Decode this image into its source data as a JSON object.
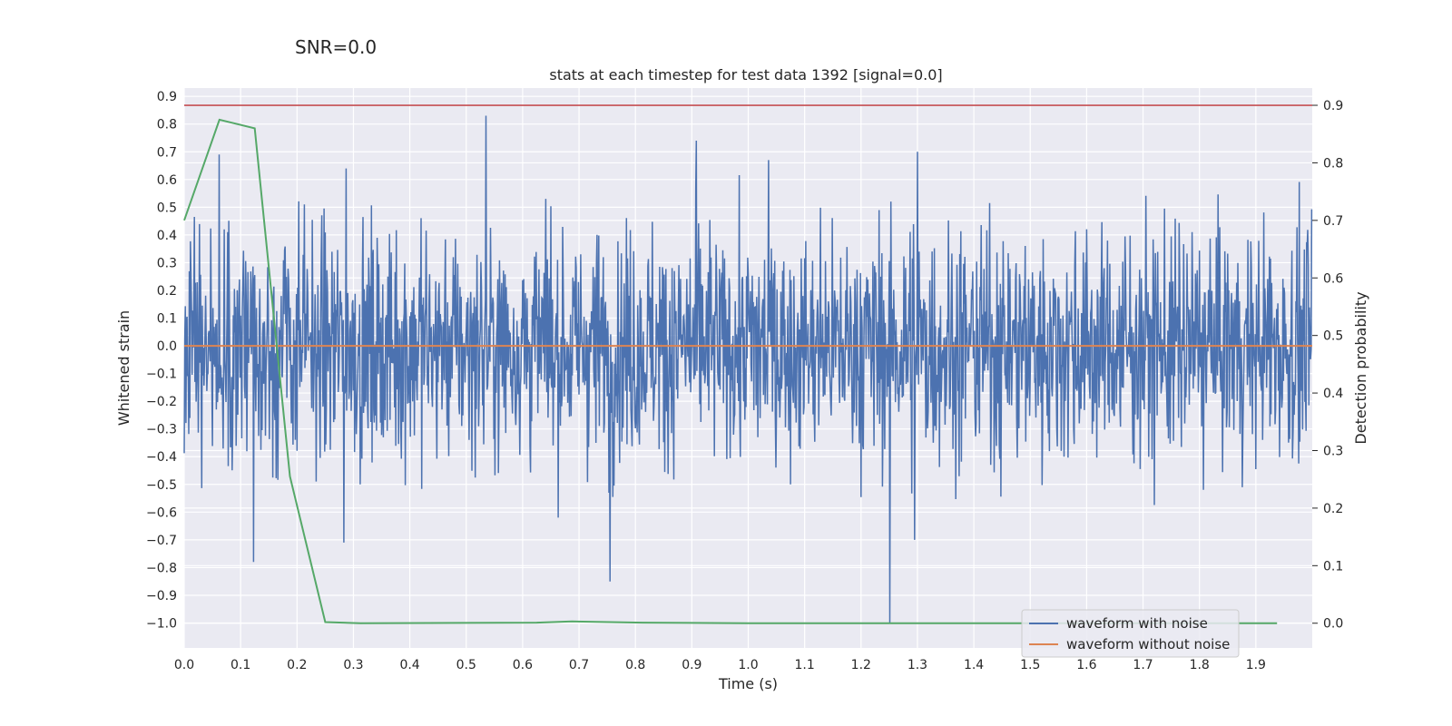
{
  "figure": {
    "suptitle": "SNR=0.0"
  },
  "chart_data": {
    "type": "line",
    "title": "stats at each timestep for test data 1392 [signal=0.0]",
    "xlabel": "Time (s)",
    "ylabel": "Whitened strain",
    "y2label": "Detection probability",
    "xlim": [
      0.0,
      2.0
    ],
    "ylim": [
      -1.09,
      0.93
    ],
    "y2lim": [
      -0.043,
      0.93
    ],
    "xticks": [
      "0.0",
      "0.1",
      "0.2",
      "0.3",
      "0.4",
      "0.5",
      "0.6",
      "0.7",
      "0.8",
      "0.9",
      "1.0",
      "1.1",
      "1.2",
      "1.3",
      "1.4",
      "1.5",
      "1.6",
      "1.7",
      "1.8",
      "1.9"
    ],
    "yticks": [
      "0.9",
      "0.8",
      "0.7",
      "0.6",
      "0.5",
      "0.4",
      "0.3",
      "0.2",
      "0.1",
      "0.0",
      "−0.1",
      "−0.2",
      "−0.3",
      "−0.4",
      "−0.5",
      "−0.6",
      "−0.7",
      "−0.8",
      "−0.9",
      "−1.0"
    ],
    "y2ticks": [
      "0.9",
      "0.8",
      "0.7",
      "0.6",
      "0.5",
      "0.4",
      "0.3",
      "0.2",
      "0.1",
      "0.0"
    ],
    "grid": true,
    "legend_position": "bottom-right",
    "colors": {
      "waveform_with_noise": "#4c72b0",
      "waveform_without_noise": "#dd8452",
      "detection_probability": "#55a868",
      "threshold": "#c44e52",
      "axes_background": "#eaeaf2",
      "grid": "#ffffff"
    },
    "series": [
      {
        "name": "waveform with noise",
        "axis": "left",
        "noise_amplitude_typical": 0.45,
        "spikes": [
          {
            "x": 0.062,
            "y": 0.69
          },
          {
            "x": 0.123,
            "y": -0.78
          },
          {
            "x": 0.283,
            "y": -0.71
          },
          {
            "x": 0.287,
            "y": 0.64
          },
          {
            "x": 0.535,
            "y": 0.83
          },
          {
            "x": 0.755,
            "y": -0.85
          },
          {
            "x": 0.908,
            "y": 0.74
          },
          {
            "x": 1.036,
            "y": 0.67
          },
          {
            "x": 1.251,
            "y": -1.0
          },
          {
            "x": 1.295,
            "y": -0.7
          },
          {
            "x": 1.3,
            "y": 0.7
          }
        ]
      },
      {
        "name": "waveform without noise",
        "axis": "left",
        "x": [
          0.0,
          2.0
        ],
        "y": [
          0.0,
          0.0
        ]
      },
      {
        "axis": "right",
        "x": [
          0.0,
          0.0625,
          0.125,
          0.1875,
          0.25,
          0.3125,
          0.625,
          0.6875,
          0.8125,
          1.0,
          1.5,
          1.9375
        ],
        "y": [
          0.7,
          0.875,
          0.86,
          0.255,
          0.002,
          0.0,
          0.001,
          0.003,
          0.001,
          0.0,
          0.0,
          0.0
        ]
      },
      {
        "axis": "right",
        "x": [
          0.0,
          2.0
        ],
        "y": [
          0.9,
          0.9
        ]
      }
    ]
  }
}
